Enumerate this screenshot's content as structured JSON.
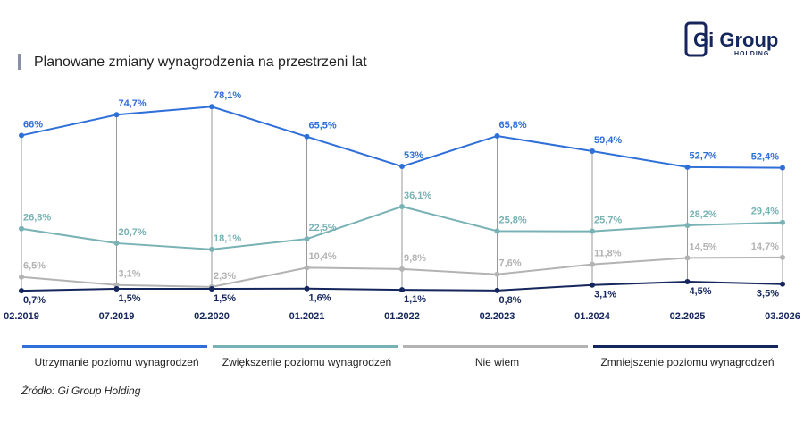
{
  "logo": {
    "name": "Gi Group",
    "sub": "HOLDING"
  },
  "source": "Źródło: Gi Group Holding",
  "chart_data": {
    "type": "line",
    "title": "Planowane zmiany wynagrodzenia na przestrzeni lat",
    "categories": [
      "02.2019",
      "07.2019",
      "02.2020",
      "01.2021",
      "01.2022",
      "02.2023",
      "01.2024",
      "02.2025",
      "03.2026"
    ],
    "series": [
      {
        "name": "Utrzymanie poziomu wynagrodzeń",
        "color": "#2f6fd8",
        "values": [
          66,
          74.7,
          78.1,
          65.5,
          53,
          65.8,
          59.4,
          52.7,
          52.4
        ],
        "value_labels": [
          "66%",
          "74,7%",
          "78,1%",
          "65,5%",
          "53%",
          "65,8%",
          "59,4%",
          "52,7%",
          "52,4%"
        ]
      },
      {
        "name": "Zwiększenie poziomu wynagrodzeń",
        "color": "#79b2b4",
        "values": [
          26.8,
          20.7,
          18.1,
          22.5,
          36.1,
          25.8,
          25.7,
          28.2,
          29.4
        ],
        "value_labels": [
          "26,8%",
          "20,7%",
          "18,1%",
          "22,5%",
          "36,1%",
          "25,8%",
          "25,7%",
          "28,2%",
          "29,4%"
        ]
      },
      {
        "name": "Nie wiem",
        "color": "#b3b3b3",
        "values": [
          6.5,
          3.1,
          2.3,
          10.4,
          9.8,
          7.6,
          11.8,
          14.5,
          14.7
        ],
        "value_labels": [
          "6,5%",
          "3,1%",
          "2,3%",
          "10,4%",
          "9,8%",
          "7,6%",
          "11,8%",
          "14,5%",
          "14,7%"
        ]
      },
      {
        "name": "Zmniejszenie poziomu wynagrodzeń",
        "color": "#14265c",
        "values": [
          0.7,
          1.5,
          1.5,
          1.6,
          1.1,
          0.8,
          3.1,
          4.5,
          3.5
        ],
        "value_labels": [
          "0,7%",
          "1,5%",
          "1,5%",
          "1,6%",
          "1,1%",
          "0,8%",
          "3,1%",
          "4,5%",
          "3,5%"
        ]
      }
    ]
  }
}
